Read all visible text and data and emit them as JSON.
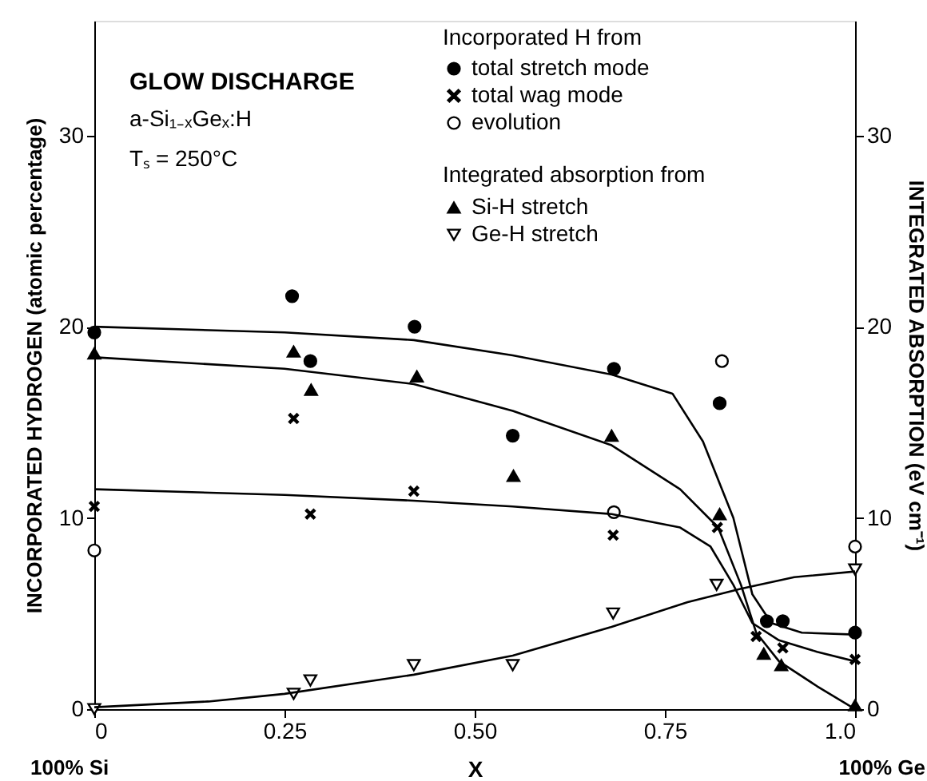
{
  "chart_data": {
    "type": "scatter",
    "xlabel": "X",
    "ylabel": "INCORPORATED HYDROGEN (atomic percentage)",
    "y2label": "INTEGRATED ABSORPTION (eV cm⁻¹)",
    "legend_title": "Incorporated H from",
    "annotations": [
      "GLOW DISCHARGE",
      "a-Si₁₋ₓGeₓ:H",
      "Tₛ = 250°C",
      "Integrated absorption from",
      "100% Si",
      "100% Ge"
    ],
    "xlim": [
      0,
      1
    ],
    "xticks": [
      0,
      0.25,
      {
        "value": 0.5,
        "label": "0.50"
      },
      0.75,
      {
        "value": 1,
        "label": "1.0"
      }
    ],
    "ylim": [
      0,
      36
    ],
    "yticks": [
      0,
      10,
      20,
      30
    ],
    "y2lim": [
      0,
      36
    ],
    "y2ticks": [
      0,
      10,
      20,
      30
    ],
    "grid": false,
    "legend": "top right",
    "series": [
      {
        "name": "total stretch mode",
        "color": "#000000",
        "marker": "circle",
        "x": [
          0,
          0.26,
          0.284,
          0.421,
          0.55,
          0.683,
          0.822,
          0.884,
          0.905,
          1.0
        ],
        "values": [
          19.7,
          21.6,
          18.2,
          20.0,
          14.3,
          17.8,
          16.0,
          4.6,
          4.6,
          4.0
        ]
      },
      {
        "name": "total wag mode",
        "color": "#000000",
        "marker": "cross",
        "x": [
          0,
          0.262,
          0.284,
          0.42,
          0.682,
          0.819,
          0.87,
          0.905,
          1.0
        ],
        "values": [
          10.6,
          15.2,
          10.2,
          11.4,
          9.1,
          9.5,
          3.8,
          3.2,
          2.6
        ]
      },
      {
        "name": "evolution",
        "color": "#ffffff",
        "marker": "circle",
        "x": [
          0,
          0.683,
          0.825,
          1.0
        ],
        "values": [
          8.3,
          10.3,
          18.2,
          8.5
        ]
      },
      {
        "type": "line",
        "color": "#000000",
        "x": [
          0,
          0.25,
          0.42,
          0.55,
          0.68,
          0.76,
          0.8,
          0.84,
          0.865,
          0.89,
          0.93,
          1.0
        ],
        "values": [
          20.0,
          19.7,
          19.3,
          18.5,
          17.5,
          16.5,
          14.0,
          10.0,
          6.0,
          4.5,
          4.0,
          3.9
        ]
      },
      {
        "type": "line",
        "color": "#000000",
        "x": [
          0,
          0.25,
          0.42,
          0.55,
          0.68,
          0.77,
          0.81,
          0.84,
          0.865,
          0.9,
          0.95,
          1.0
        ],
        "values": [
          11.5,
          11.2,
          10.9,
          10.6,
          10.2,
          9.5,
          8.5,
          6.5,
          4.5,
          3.6,
          3.0,
          2.5
        ]
      },
      {
        "name": "Si-H stretch",
        "color": "#000000",
        "marker": "triangle",
        "axis": "y2",
        "x": [
          0,
          0.262,
          0.285,
          0.424,
          0.551,
          0.68,
          0.822,
          0.88,
          0.903,
          1.0
        ],
        "values": [
          18.6,
          18.7,
          16.7,
          17.4,
          12.2,
          14.3,
          10.2,
          2.9,
          2.3,
          0.2
        ]
      },
      {
        "name": "Ge-H stretch",
        "color": "#ffffff",
        "marker": "triangle-down",
        "axis": "y2",
        "x": [
          0,
          0.262,
          0.284,
          0.42,
          0.55,
          0.682,
          0.818,
          1.0
        ],
        "values": [
          0,
          0.8,
          1.5,
          2.3,
          2.3,
          5.0,
          6.5,
          7.3
        ]
      },
      {
        "type": "line",
        "color": "#000000",
        "axis": "y2",
        "x": [
          0,
          0.25,
          0.42,
          0.55,
          0.68,
          0.77,
          0.82,
          0.85,
          0.87,
          0.9,
          0.95,
          1.0
        ],
        "values": [
          18.4,
          17.8,
          17.0,
          15.6,
          13.8,
          11.5,
          9.5,
          6.5,
          4.0,
          2.5,
          1.2,
          0
        ]
      },
      {
        "type": "line",
        "color": "#000000",
        "axis": "y2",
        "x": [
          0,
          0.15,
          0.25,
          0.42,
          0.55,
          0.68,
          0.78,
          0.85,
          0.92,
          1.0
        ],
        "values": [
          0.1,
          0.4,
          0.8,
          1.8,
          2.8,
          4.3,
          5.6,
          6.3,
          6.9,
          7.2
        ]
      }
    ]
  }
}
